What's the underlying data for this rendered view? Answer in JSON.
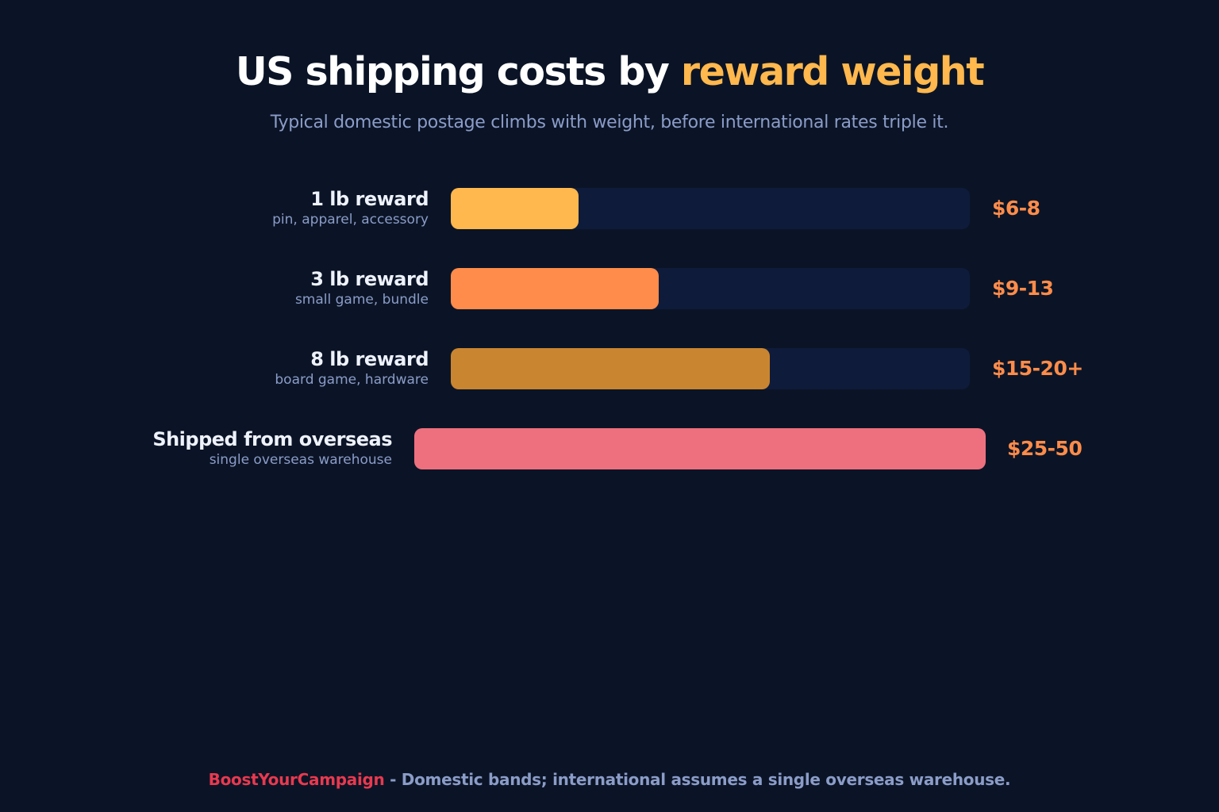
{
  "colors": {
    "background": "#0b1426",
    "title_accent": "#ffb84d",
    "value_text": "#ff8c4a",
    "track": "#0f1b3a",
    "brand": "#e8394f"
  },
  "chart_data": {
    "type": "bar",
    "orientation": "horizontal",
    "title_prefix": "US shipping costs by ",
    "title_accent": "reward weight",
    "subtitle": "Typical domestic postage climbs with weight, before international rates triple it.",
    "categories": [
      "1 lb reward",
      "3 lb reward",
      "8 lb reward",
      "Shipped from overseas"
    ],
    "descriptions": [
      "pin, apparel, accessory",
      "small game, bundle",
      "board game, hardware",
      "single overseas warehouse"
    ],
    "value_labels": [
      "$6-8",
      "$9-13",
      "$15-20+",
      "$25-50"
    ],
    "values": [
      8,
      13,
      20,
      50
    ],
    "scale_max": 32.5,
    "bar_colors": [
      "#ffb84d",
      "#ff8c4a",
      "#c98530",
      "#ee707e"
    ]
  },
  "footer": {
    "brand": "BoostYourCampaign",
    "text": " - Domestic bands; international assumes a single overseas warehouse."
  }
}
